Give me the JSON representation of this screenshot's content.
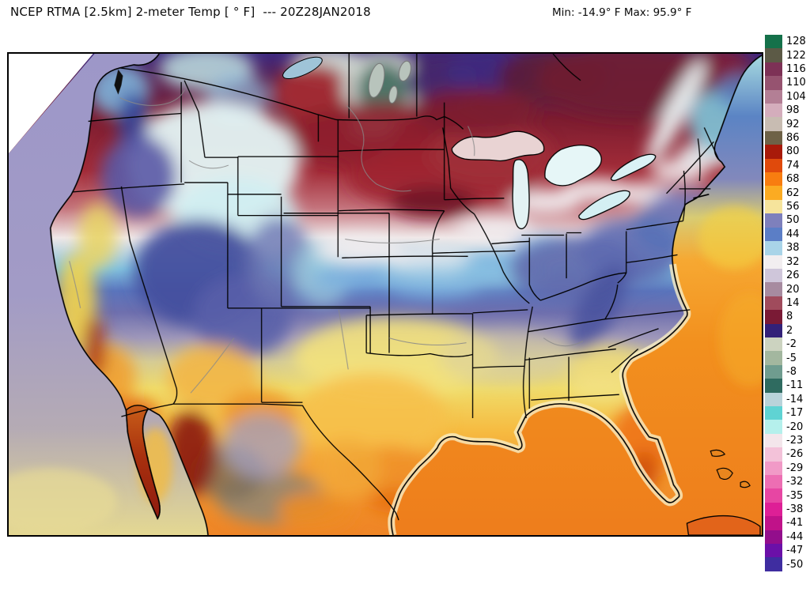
{
  "header": {
    "title": "NCEP RTMA [2.5km] 2-meter Temp [ ° F]  --- 20Z28JAN2018",
    "stats": "Min: -14.9° F Max: 95.9° F"
  },
  "colorbar": {
    "unit": "°F",
    "segments": [
      {
        "label": "128",
        "color": "#15714a"
      },
      {
        "label": "122",
        "color": "#5c5a46"
      },
      {
        "label": "116",
        "color": "#7d3156"
      },
      {
        "label": "110",
        "color": "#965370"
      },
      {
        "label": "104",
        "color": "#b37f95"
      },
      {
        "label": "98",
        "color": "#d4adbc"
      },
      {
        "label": "92",
        "color": "#c8bcb2"
      },
      {
        "label": "86",
        "color": "#6e6247"
      },
      {
        "label": "80",
        "color": "#a81a0a"
      },
      {
        "label": "74",
        "color": "#e04a0c"
      },
      {
        "label": "68",
        "color": "#f87d10"
      },
      {
        "label": "62",
        "color": "#fbab22"
      },
      {
        "label": "56",
        "color": "#f6e49c"
      },
      {
        "label": "50",
        "color": "#7e80bc"
      },
      {
        "label": "44",
        "color": "#5b7ec6"
      },
      {
        "label": "38",
        "color": "#a9d4e8"
      },
      {
        "label": "32",
        "color": "#f2eef0"
      },
      {
        "label": "26",
        "color": "#cfc6da"
      },
      {
        "label": "20",
        "color": "#a78ba0"
      },
      {
        "label": "14",
        "color": "#a04b5c"
      },
      {
        "label": "8",
        "color": "#7a1a35"
      },
      {
        "label": "2",
        "color": "#332178"
      },
      {
        "label": "-2",
        "color": "#ccd3c0"
      },
      {
        "label": "-5",
        "color": "#a3b79f"
      },
      {
        "label": "-8",
        "color": "#6f9c8f"
      },
      {
        "label": "-11",
        "color": "#2f6b60"
      },
      {
        "label": "-14",
        "color": "#b9d3da"
      },
      {
        "label": "-17",
        "color": "#5fd3d3"
      },
      {
        "label": "-20",
        "color": "#b5f0ec"
      },
      {
        "label": "-23",
        "color": "#f3e6eb"
      },
      {
        "label": "-26",
        "color": "#f3c2d9"
      },
      {
        "label": "-29",
        "color": "#f19ac7"
      },
      {
        "label": "-32",
        "color": "#ed6eb3"
      },
      {
        "label": "-35",
        "color": "#e746a3"
      },
      {
        "label": "-38",
        "color": "#de1f96"
      },
      {
        "label": "-41",
        "color": "#c01289"
      },
      {
        "label": "-44",
        "color": "#930e8c"
      },
      {
        "label": "-47",
        "color": "#6b10a8"
      },
      {
        "label": "-50",
        "color": "#3f2da0"
      }
    ]
  },
  "map": {
    "colors": {
      "pacific_north": "#9d97c8",
      "pacific_mid": "#a29bc6",
      "pacific_south": "#e4d892",
      "atlantic_top": "#a8dce0",
      "atlantic_blue": "#5b84c4",
      "atlantic_yellow": "#d8cc74",
      "atlantic_orange": "#f6a832",
      "gulf_orange": "#ee7d1c",
      "shelf_pale": "#f7eec4",
      "canada_indigo": "#3f2a80",
      "arctic_teal": "#4e7468",
      "quebec_maroon": "#6f1a32",
      "northern_red": "#8f1f2c",
      "white_band": "#f0ecee",
      "cyan_band": "#79aede",
      "rockies_white": "#e4f5f6",
      "great_basin_blue": "#44509e",
      "appalachian_slate": "#5d6ab0",
      "plains_yellow": "#f3e27c",
      "texas_orange": "#f6c04a",
      "california_yellow": "#f2d44e",
      "florida_orange": "#ee7214",
      "mexico_sierra_red": "#8a1a0c",
      "mexico_gray": "#99886e",
      "border_black": "#000000",
      "river_gray": "#8a8a8a"
    },
    "features": [
      {
        "region": "Central Canada cold pool (top of grid)",
        "depicted_temp_f": "-15 to 10"
      },
      {
        "region": "Northern Plains / Upper Midwest",
        "depicted_temp_f": "5 to 20"
      },
      {
        "region": "Midwest freezing-line white band",
        "depicted_temp_f": "26 to 32"
      },
      {
        "region": "Interior West / Great Basin",
        "depicted_temp_f": "30 to 50"
      },
      {
        "region": "California coast and Desert Southwest",
        "depicted_temp_f": "60 to 85"
      },
      {
        "region": "Southern Plains and Gulf states",
        "depicted_temp_f": "55 to 75"
      },
      {
        "region": "Florida and Gulf of Mexico",
        "depicted_temp_f": "65 to 80"
      },
      {
        "region": "Northwest Mexico highlands",
        "depicted_temp_f": "80 to 96"
      }
    ]
  }
}
